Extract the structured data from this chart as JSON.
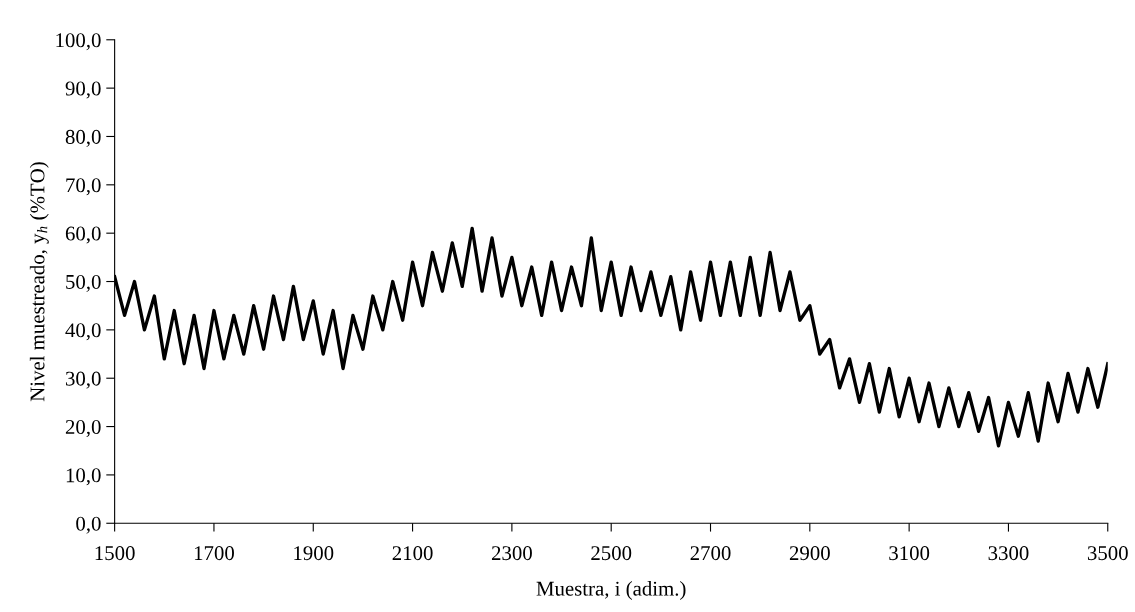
{
  "chart_data": {
    "type": "line",
    "xlabel": "Muestra, i (adim.)",
    "ylabel": "Nivel muestreado, y$_{h}$ (%TO)",
    "x": [
      1500,
      1520,
      1540,
      1560,
      1580,
      1600,
      1620,
      1640,
      1660,
      1680,
      1700,
      1720,
      1740,
      1760,
      1780,
      1800,
      1820,
      1840,
      1860,
      1880,
      1900,
      1920,
      1940,
      1960,
      1980,
      2000,
      2020,
      2040,
      2060,
      2080,
      2100,
      2120,
      2140,
      2160,
      2180,
      2200,
      2220,
      2240,
      2260,
      2280,
      2300,
      2320,
      2340,
      2360,
      2380,
      2400,
      2420,
      2440,
      2460,
      2480,
      2500,
      2520,
      2540,
      2560,
      2580,
      2600,
      2620,
      2640,
      2660,
      2680,
      2700,
      2720,
      2740,
      2760,
      2780,
      2800,
      2820,
      2840,
      2860,
      2880,
      2900,
      2920,
      2940,
      2960,
      2980,
      3000,
      3020,
      3040,
      3060,
      3080,
      3100,
      3120,
      3140,
      3160,
      3180,
      3200,
      3220,
      3240,
      3260,
      3280,
      3300,
      3320,
      3340,
      3360,
      3380,
      3400,
      3420,
      3440,
      3460,
      3480,
      3500
    ],
    "series": [
      {
        "color": "#000000",
        "values": [
          51,
          43,
          50,
          40,
          47,
          34,
          44,
          33,
          43,
          32,
          44,
          34,
          43,
          35,
          45,
          36,
          47,
          38,
          49,
          38,
          46,
          35,
          44,
          32,
          43,
          36,
          47,
          40,
          50,
          42,
          54,
          45,
          56,
          48,
          58,
          49,
          61,
          48,
          59,
          47,
          55,
          45,
          53,
          43,
          54,
          44,
          53,
          45,
          59,
          44,
          54,
          43,
          53,
          44,
          52,
          43,
          51,
          40,
          52,
          42,
          54,
          43,
          54,
          43,
          55,
          43,
          56,
          44,
          52,
          42,
          45,
          35,
          38,
          28,
          34,
          25,
          33,
          23,
          32,
          22,
          30,
          21,
          29,
          20,
          28,
          20,
          27,
          19,
          26,
          16,
          25,
          18,
          27,
          17,
          29,
          21,
          31,
          23,
          32,
          24,
          33
        ]
      }
    ],
    "xlim": [
      1500,
      3500
    ],
    "xticks": [
      1500,
      1700,
      1900,
      2100,
      2300,
      2500,
      2700,
      2900,
      3100,
      3300,
      3500
    ],
    "ylim": [
      0,
      100
    ],
    "yticks": [
      {
        "value": 0,
        "label": "0,0"
      },
      {
        "value": 10,
        "label": "10,0"
      },
      {
        "value": 20,
        "label": "20,0"
      },
      {
        "value": 30,
        "label": "30,0"
      },
      {
        "value": 40,
        "label": "40,0"
      },
      {
        "value": 50,
        "label": "50,0"
      },
      {
        "value": 60,
        "label": "60,0"
      },
      {
        "value": 70,
        "label": "70,0"
      },
      {
        "value": 80,
        "label": "80,0"
      },
      {
        "value": 90,
        "label": "90,0"
      },
      {
        "value": 100,
        "label": "100,0"
      }
    ],
    "grid": false,
    "legend": false,
    "marker": "none",
    "line_style": "solid"
  }
}
